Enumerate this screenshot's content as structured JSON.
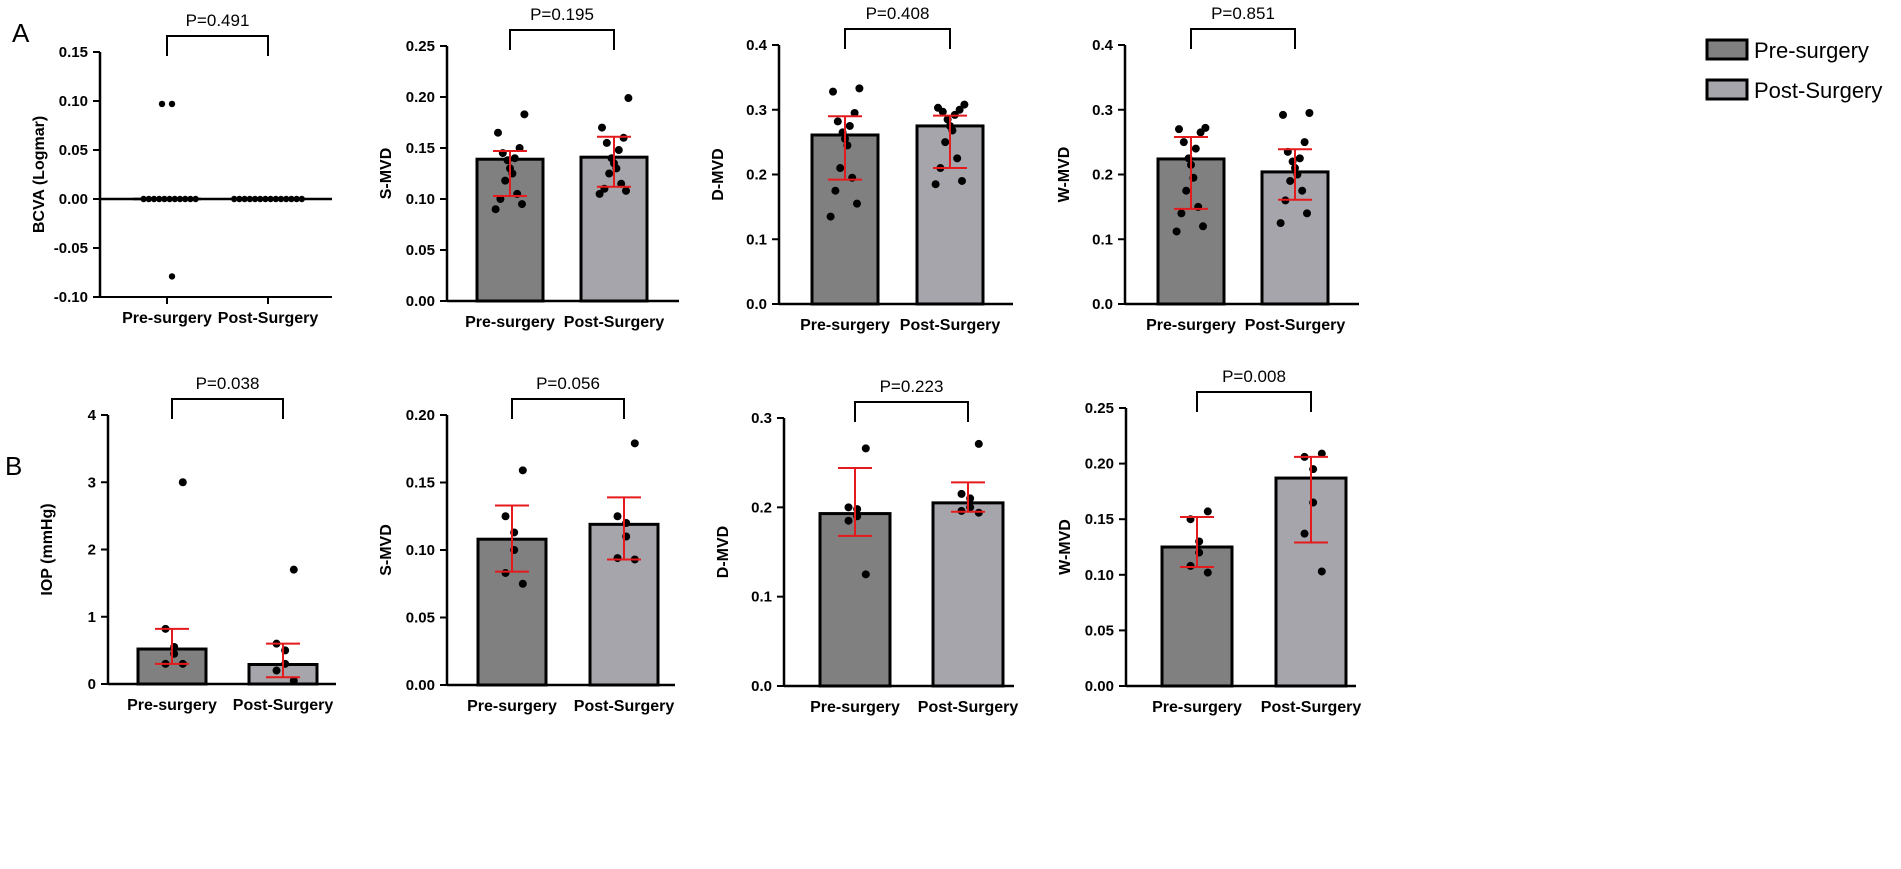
{
  "colors": {
    "pre": "#808080",
    "post": "#a6a5ac",
    "error": "#e41a1c",
    "dot": "#000000"
  },
  "legend": [
    {
      "label": "Pre-surgery",
      "color": "#808080"
    },
    {
      "label": "Post-Surgery",
      "color": "#a6a5ac"
    }
  ],
  "panel_labels": [
    "A",
    "B"
  ],
  "chart_data": [
    {
      "id": "A1",
      "type": "scatter",
      "panel": "A",
      "ylabel": "BCVA (Logmar)",
      "ylim": [
        -0.1,
        0.15
      ],
      "yticks": [
        -0.1,
        -0.05,
        0.0,
        0.05,
        0.1,
        0.15
      ],
      "ytick_labels": [
        "-0.10",
        "-0.05",
        "0.00",
        "0.05",
        "0.10",
        "0.15"
      ],
      "categories": [
        "Pre-surgery",
        "Post-Surgery"
      ],
      "pvalue": "P=0.491",
      "zero_line": true,
      "series": [
        {
          "name": "Pre-surgery",
          "bar": 0.0,
          "points": [
            0.097,
            0.097,
            0,
            0,
            0,
            0,
            0,
            0,
            0,
            0,
            0,
            0,
            0,
            -0.079
          ]
        },
        {
          "name": "Post-Surgery",
          "bar": 0.0,
          "points": [
            0,
            0,
            0,
            0,
            0,
            0,
            0,
            0,
            0,
            0,
            0,
            0,
            0,
            0
          ]
        }
      ]
    },
    {
      "id": "A2",
      "type": "bar",
      "panel": "A",
      "ylabel": "S-MVD",
      "ylim": [
        0,
        0.25
      ],
      "yticks": [
        0,
        0.05,
        0.1,
        0.15,
        0.2,
        0.25
      ],
      "ytick_labels": [
        "0.00",
        "0.05",
        "0.10",
        "0.15",
        "0.20",
        "0.25"
      ],
      "categories": [
        "Pre-surgery",
        "Post-Surgery"
      ],
      "pvalue": "P=0.195",
      "series": [
        {
          "name": "Pre-surgery",
          "bar": 0.139,
          "err": [
            0.103,
            0.147
          ],
          "points": [
            0.183,
            0.165,
            0.15,
            0.145,
            0.14,
            0.138,
            0.13,
            0.125,
            0.118,
            0.105,
            0.1,
            0.095,
            0.09
          ]
        },
        {
          "name": "Post-Surgery",
          "bar": 0.141,
          "err": [
            0.112,
            0.161
          ],
          "points": [
            0.199,
            0.17,
            0.16,
            0.155,
            0.148,
            0.14,
            0.135,
            0.13,
            0.125,
            0.115,
            0.11,
            0.108,
            0.105
          ]
        }
      ]
    },
    {
      "id": "A3",
      "type": "bar",
      "panel": "A",
      "ylabel": "D-MVD",
      "ylim": [
        0,
        0.4
      ],
      "yticks": [
        0,
        0.1,
        0.2,
        0.3,
        0.4
      ],
      "ytick_labels": [
        "0.0",
        "0.1",
        "0.2",
        "0.3",
        "0.4"
      ],
      "categories": [
        "Pre-surgery",
        "Post-Surgery"
      ],
      "pvalue": "P=0.408",
      "series": [
        {
          "name": "Pre-surgery",
          "bar": 0.261,
          "err": [
            0.192,
            0.29
          ],
          "points": [
            0.333,
            0.328,
            0.295,
            0.282,
            0.275,
            0.265,
            0.255,
            0.245,
            0.21,
            0.195,
            0.175,
            0.155,
            0.135
          ]
        },
        {
          "name": "Post-Surgery",
          "bar": 0.275,
          "err": [
            0.21,
            0.291
          ],
          "points": [
            0.308,
            0.303,
            0.3,
            0.297,
            0.292,
            0.285,
            0.275,
            0.268,
            0.25,
            0.225,
            0.21,
            0.19,
            0.185
          ]
        }
      ]
    },
    {
      "id": "A4",
      "type": "bar",
      "panel": "A",
      "ylabel": "W-MVD",
      "ylim": [
        0,
        0.4
      ],
      "yticks": [
        0,
        0.1,
        0.2,
        0.3,
        0.4
      ],
      "ytick_labels": [
        "0.0",
        "0.1",
        "0.2",
        "0.3",
        "0.4"
      ],
      "categories": [
        "Pre-surgery",
        "Post-Surgery"
      ],
      "pvalue": "P=0.851",
      "series": [
        {
          "name": "Pre-surgery",
          "bar": 0.224,
          "err": [
            0.147,
            0.258
          ],
          "points": [
            0.272,
            0.27,
            0.265,
            0.25,
            0.24,
            0.225,
            0.215,
            0.195,
            0.175,
            0.15,
            0.14,
            0.12,
            0.112
          ]
        },
        {
          "name": "Post-Surgery",
          "bar": 0.204,
          "err": [
            0.161,
            0.239
          ],
          "points": [
            0.295,
            0.292,
            0.25,
            0.235,
            0.225,
            0.22,
            0.21,
            0.2,
            0.19,
            0.175,
            0.16,
            0.14,
            0.125
          ]
        }
      ]
    },
    {
      "id": "B1",
      "type": "bar",
      "panel": "B",
      "ylabel": "IOP (mmHg)",
      "ylim": [
        0,
        4
      ],
      "yticks": [
        0,
        1,
        2,
        3,
        4
      ],
      "ytick_labels": [
        "0",
        "1",
        "2",
        "3",
        "4"
      ],
      "categories": [
        "Pre-surgery",
        "Post-Surgery"
      ],
      "pvalue": "P=0.038",
      "series": [
        {
          "name": "Pre-surgery",
          "bar": 0.52,
          "err": [
            0.3,
            0.82
          ],
          "points": [
            3.0,
            0.82,
            0.55,
            0.45,
            0.3,
            0.3
          ]
        },
        {
          "name": "Post-Surgery",
          "bar": 0.29,
          "err": [
            0.1,
            0.6
          ],
          "points": [
            1.7,
            0.6,
            0.5,
            0.3,
            0.2,
            0.05
          ]
        }
      ]
    },
    {
      "id": "B2",
      "type": "bar",
      "panel": "B",
      "ylabel": "S-MVD",
      "ylim": [
        0,
        0.2
      ],
      "yticks": [
        0,
        0.05,
        0.1,
        0.15,
        0.2
      ],
      "ytick_labels": [
        "0.00",
        "0.05",
        "0.10",
        "0.15",
        "0.20"
      ],
      "categories": [
        "Pre-surgery",
        "Post-Surgery"
      ],
      "pvalue": "P=0.056",
      "series": [
        {
          "name": "Pre-surgery",
          "bar": 0.108,
          "err": [
            0.084,
            0.133
          ],
          "points": [
            0.159,
            0.125,
            0.113,
            0.1,
            0.083,
            0.075
          ]
        },
        {
          "name": "Post-Surgery",
          "bar": 0.119,
          "err": [
            0.093,
            0.139
          ],
          "points": [
            0.179,
            0.125,
            0.12,
            0.11,
            0.094,
            0.093
          ]
        }
      ]
    },
    {
      "id": "B3",
      "type": "bar",
      "panel": "B",
      "ylabel": "D-MVD",
      "ylim": [
        0,
        0.3
      ],
      "yticks": [
        0,
        0.1,
        0.2,
        0.3
      ],
      "ytick_labels": [
        "0.0",
        "0.1",
        "0.2",
        "0.3"
      ],
      "categories": [
        "Pre-surgery",
        "Post-Surgery"
      ],
      "pvalue": "P=0.223",
      "series": [
        {
          "name": "Pre-surgery",
          "bar": 0.193,
          "err": [
            0.168,
            0.244
          ],
          "points": [
            0.266,
            0.2,
            0.198,
            0.19,
            0.185,
            0.125
          ]
        },
        {
          "name": "Post-Surgery",
          "bar": 0.205,
          "err": [
            0.195,
            0.228
          ],
          "points": [
            0.271,
            0.215,
            0.21,
            0.2,
            0.196,
            0.194
          ]
        }
      ]
    },
    {
      "id": "B4",
      "type": "bar",
      "panel": "B",
      "ylabel": "W-MVD",
      "ylim": [
        0,
        0.25
      ],
      "yticks": [
        0,
        0.05,
        0.1,
        0.15,
        0.2,
        0.25
      ],
      "ytick_labels": [
        "0.00",
        "0.05",
        "0.10",
        "0.15",
        "0.20",
        "0.25"
      ],
      "categories": [
        "Pre-surgery",
        "Post-Surgery"
      ],
      "pvalue": "P=0.008",
      "series": [
        {
          "name": "Pre-surgery",
          "bar": 0.125,
          "err": [
            0.107,
            0.152
          ],
          "points": [
            0.157,
            0.15,
            0.13,
            0.12,
            0.108,
            0.102
          ]
        },
        {
          "name": "Post-Surgery",
          "bar": 0.187,
          "err": [
            0.129,
            0.206
          ],
          "points": [
            0.209,
            0.206,
            0.195,
            0.165,
            0.137,
            0.103
          ]
        }
      ]
    }
  ]
}
